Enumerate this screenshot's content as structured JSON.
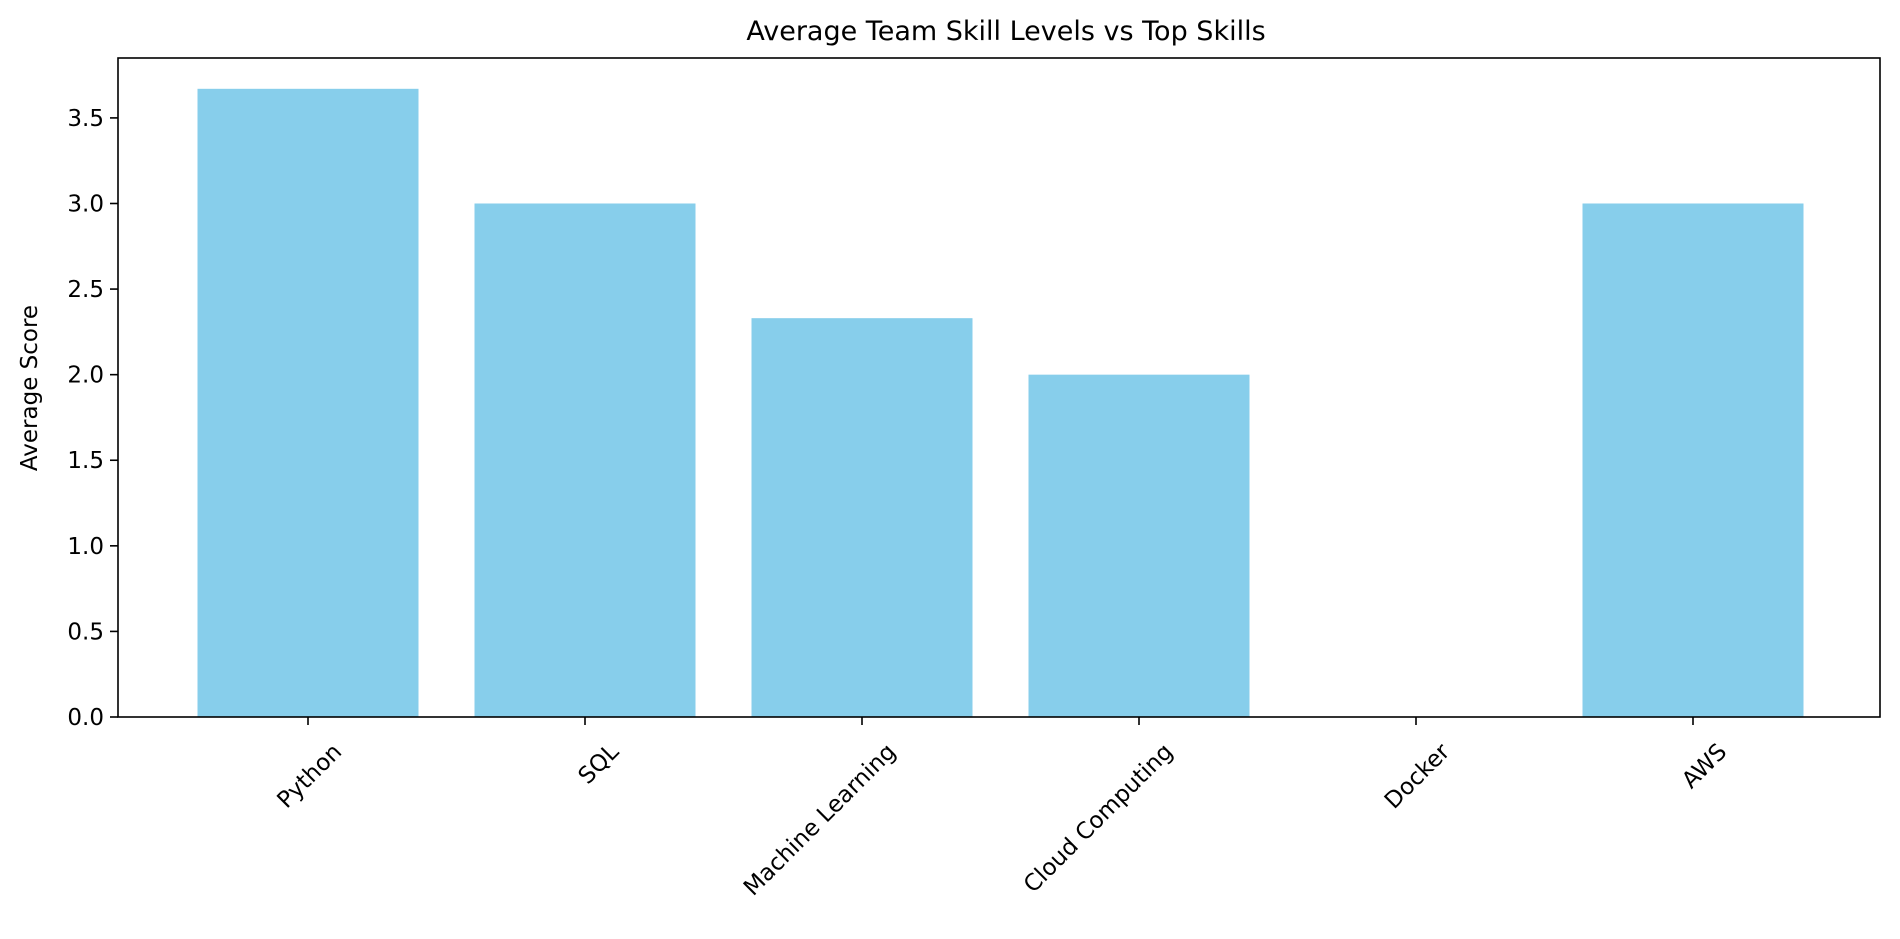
{
  "chart_data": {
    "type": "bar",
    "title": "Average Team Skill Levels vs Top Skills",
    "xlabel": "",
    "ylabel": "Average Score",
    "categories": [
      "Python",
      "SQL",
      "Machine Learning",
      "Cloud Computing",
      "Docker",
      "AWS"
    ],
    "values": [
      3.67,
      3.0,
      2.33,
      2.0,
      0.0,
      3.0
    ],
    "ylim": [
      0,
      3.85
    ],
    "yticks": [
      "0.0",
      "0.5",
      "1.0",
      "1.5",
      "2.0",
      "2.5",
      "3.0",
      "3.5"
    ],
    "xtick_rotation_deg": 45,
    "bar_color": "#87CEEB",
    "grid": false,
    "legend": false
  }
}
